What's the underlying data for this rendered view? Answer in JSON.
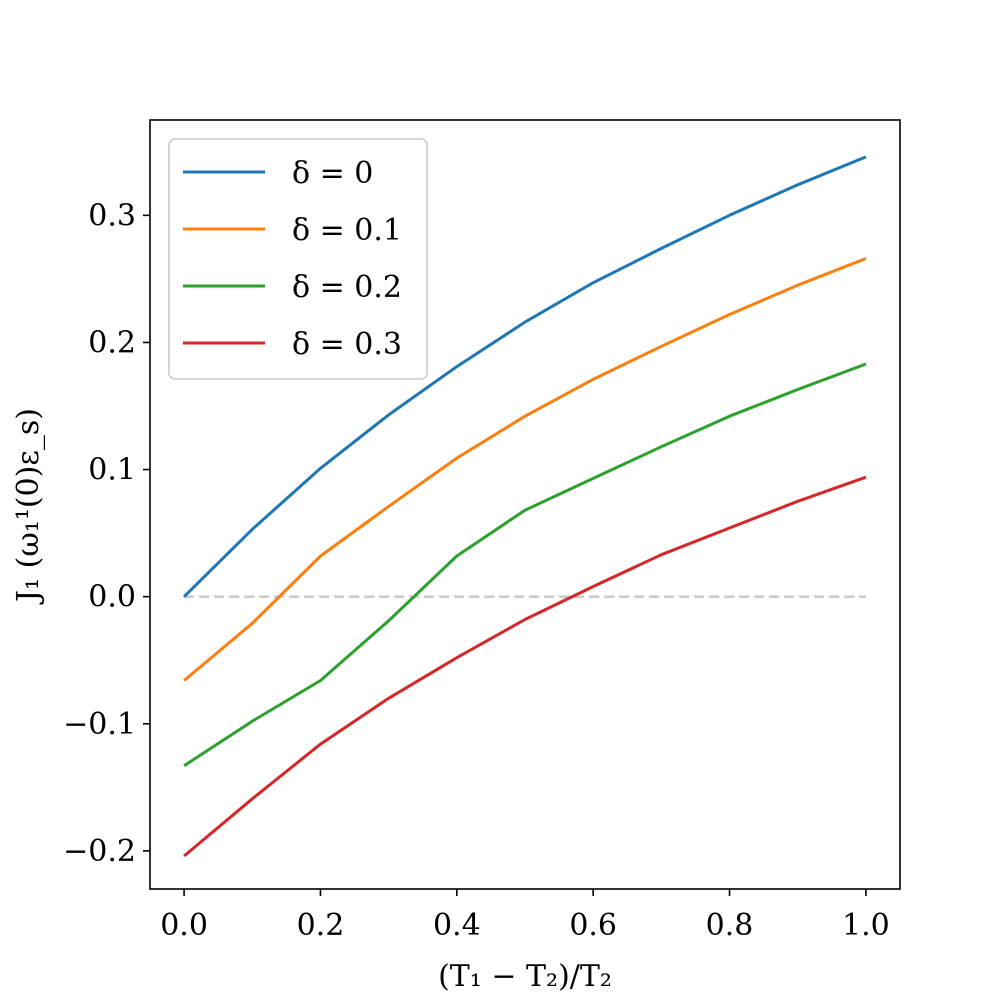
{
  "chart_data": {
    "type": "line",
    "title": "",
    "xlabel": "(T₁ − T₂)/T₂",
    "ylabel": "J₁ (ω₁¹(0)ε_s)",
    "xlim": [
      -0.05,
      1.05
    ],
    "ylim": [
      -0.23,
      0.375
    ],
    "xticks": [
      0.0,
      0.2,
      0.4,
      0.6,
      0.8,
      1.0
    ],
    "xtick_labels": [
      "0.0",
      "0.2",
      "0.4",
      "0.6",
      "0.8",
      "1.0"
    ],
    "yticks": [
      -0.2,
      -0.1,
      0.0,
      0.1,
      0.2,
      0.3
    ],
    "ytick_labels": [
      "−0.2",
      "−0.1",
      "0.0",
      "0.1",
      "0.2",
      "0.3"
    ],
    "grid": false,
    "legend_position": "top-left",
    "x": [
      0.0,
      0.1,
      0.2,
      0.3,
      0.4,
      0.5,
      0.6,
      0.7,
      0.8,
      0.9,
      1.0
    ],
    "series": [
      {
        "name": "δ = 0",
        "color": "#1f77b4",
        "values": [
          0.0,
          0.053,
          0.101,
          0.143,
          0.181,
          0.216,
          0.247,
          0.274,
          0.3,
          0.324,
          0.346
        ]
      },
      {
        "name": "δ = 0.1",
        "color": "#ff7f0e",
        "values": [
          -0.066,
          -0.021,
          0.032,
          0.071,
          0.109,
          0.142,
          0.171,
          0.197,
          0.222,
          0.245,
          0.266
        ]
      },
      {
        "name": "δ = 0.2",
        "color": "#2ca02c",
        "values": [
          -0.133,
          -0.098,
          -0.066,
          -0.019,
          0.032,
          0.068,
          0.093,
          0.118,
          0.142,
          0.163,
          0.183
        ]
      },
      {
        "name": "δ = 0.3",
        "color": "#d62728",
        "values": [
          -0.204,
          -0.159,
          -0.116,
          -0.08,
          -0.048,
          -0.018,
          0.008,
          0.033,
          0.054,
          0.075,
          0.094
        ]
      }
    ],
    "reference_line": {
      "y": 0.0,
      "color": "#cccccc",
      "style": "dashed"
    }
  }
}
